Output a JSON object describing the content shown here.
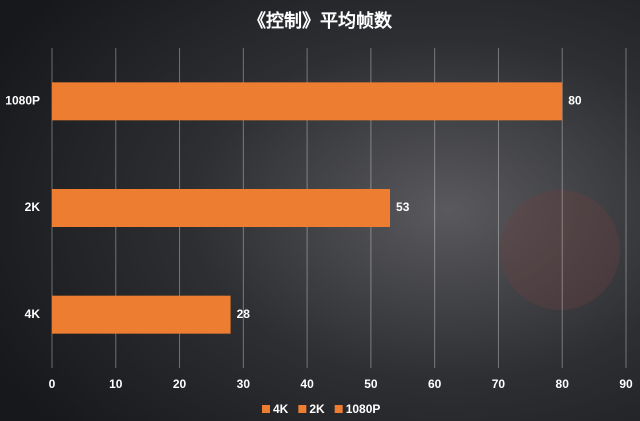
{
  "chart_data": {
    "type": "hbar",
    "title": "《控制》平均帧数",
    "categories": [
      "4K",
      "2K",
      "1080P"
    ],
    "values": [
      28,
      53,
      80
    ],
    "color": "#ed7d31",
    "xlim": [
      0,
      90
    ],
    "xticks": [
      0,
      10,
      20,
      30,
      40,
      50,
      60,
      70,
      80,
      90
    ],
    "grid": true,
    "legend": "bottom"
  }
}
